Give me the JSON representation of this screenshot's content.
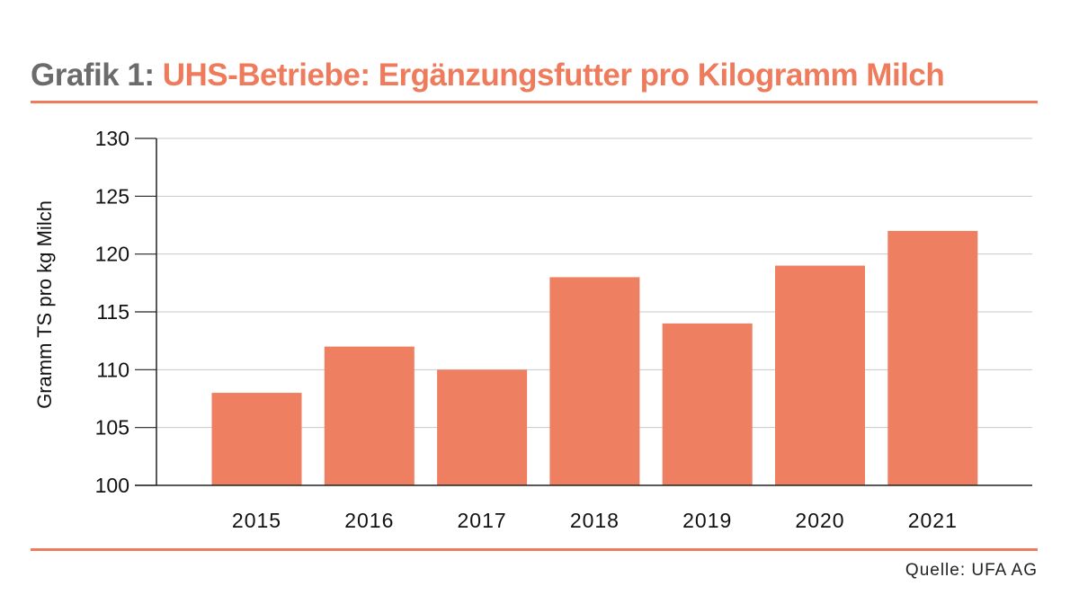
{
  "title": {
    "prefix": "Grafik 1:",
    "main": "UHS-Betriebe: Ergänzungsfutter pro Kilogramm Milch"
  },
  "source": "Quelle: UFA AG",
  "colors": {
    "accent": "#ee7b5c",
    "bar": "#ee7f61",
    "grid": "#c9c9c9",
    "axis": "#222222",
    "prefix": "#6b6b6b"
  },
  "chart_data": {
    "type": "bar",
    "categories": [
      "2015",
      "2016",
      "2017",
      "2018",
      "2019",
      "2020",
      "2021"
    ],
    "values": [
      108,
      112,
      110,
      118,
      114,
      119,
      122
    ],
    "xlabel": "",
    "ylabel": "Gramm TS pro kg Milch",
    "ylim": [
      100,
      130
    ],
    "yticks": [
      100,
      105,
      110,
      115,
      120,
      125,
      130
    ],
    "grid": true,
    "legend": "none"
  }
}
